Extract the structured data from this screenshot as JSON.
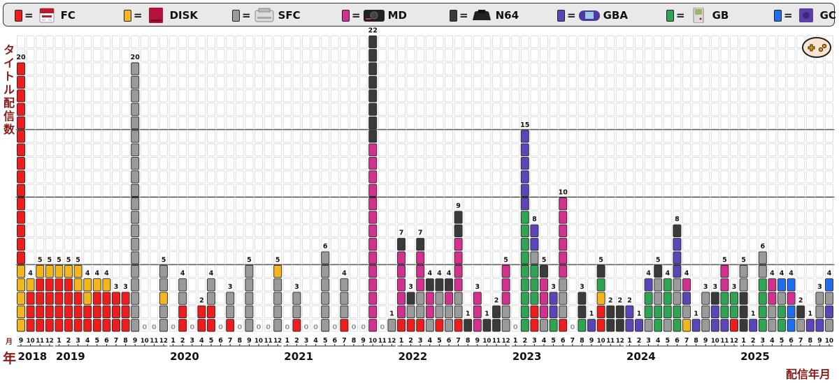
{
  "legend": [
    {
      "key": "FC",
      "label": "FC",
      "color": "#ee1c1c",
      "icon": "famicom-icon"
    },
    {
      "key": "DISK",
      "label": "DISK",
      "color": "#f5b51d",
      "icon": "disk-system-icon"
    },
    {
      "key": "SFC",
      "label": "SFC",
      "color": "#9a9a9a",
      "icon": "super-famicom-icon"
    },
    {
      "key": "MD",
      "label": "MD",
      "color": "#d3308f",
      "icon": "mega-drive-icon"
    },
    {
      "key": "N64",
      "label": "N64",
      "color": "#3a3a3a",
      "icon": "nintendo64-icon"
    },
    {
      "key": "GBA",
      "label": "GBA",
      "color": "#5c45b8",
      "icon": "gameboy-advance-icon"
    },
    {
      "key": "GB",
      "label": "GB",
      "color": "#2fa452",
      "icon": "gameboy-icon"
    },
    {
      "key": "GC",
      "label": "GC",
      "color": "#1f6df0",
      "icon": "gamecube-icon"
    }
  ],
  "equals": "=",
  "axis": {
    "ylabel": "タイトル配信数",
    "xlabel": "配信年月",
    "year_marker": "年",
    "month_marker": "月"
  },
  "icons": {
    "controller": "controller-icon"
  },
  "chart_data": {
    "type": "bar",
    "stacked": true,
    "ylim": [
      0,
      22
    ],
    "gridlines": [
      5,
      10,
      15
    ],
    "years": [
      {
        "label": "2018",
        "start": 0,
        "count": 4
      },
      {
        "label": "2019",
        "start": 4,
        "count": 12
      },
      {
        "label": "2020",
        "start": 16,
        "count": 12
      },
      {
        "label": "2021",
        "start": 28,
        "count": 12
      },
      {
        "label": "2022",
        "start": 40,
        "count": 12
      },
      {
        "label": "2023",
        "start": 52,
        "count": 12
      },
      {
        "label": "2024",
        "start": 64,
        "count": 12
      },
      {
        "label": "2025",
        "start": 76,
        "count": 10
      }
    ],
    "months": [
      {
        "m": "9",
        "total": "20",
        "stack": [
          [
            "DISK",
            5
          ],
          [
            "FC",
            15
          ]
        ]
      },
      {
        "m": "10",
        "total": "4",
        "stack": [
          [
            "FC",
            3
          ],
          [
            "DISK",
            1
          ]
        ]
      },
      {
        "m": "11",
        "total": "5",
        "stack": [
          [
            "FC",
            4
          ],
          [
            "DISK",
            1
          ]
        ]
      },
      {
        "m": "12",
        "total": "5",
        "stack": [
          [
            "FC",
            4
          ],
          [
            "DISK",
            1
          ]
        ]
      },
      {
        "m": "1",
        "total": "5",
        "stack": [
          [
            "FC",
            4
          ],
          [
            "DISK",
            1
          ]
        ]
      },
      {
        "m": "2",
        "total": "5",
        "stack": [
          [
            "FC",
            4
          ],
          [
            "DISK",
            1
          ]
        ]
      },
      {
        "m": "3",
        "total": "5",
        "stack": [
          [
            "FC",
            3
          ],
          [
            "DISK",
            2
          ]
        ]
      },
      {
        "m": "4",
        "total": "4",
        "stack": [
          [
            "FC",
            2
          ],
          [
            "DISK",
            2
          ]
        ]
      },
      {
        "m": "5",
        "total": "4",
        "stack": [
          [
            "FC",
            3
          ],
          [
            "DISK",
            1
          ]
        ]
      },
      {
        "m": "6",
        "total": "4",
        "stack": [
          [
            "FC",
            3
          ],
          [
            "DISK",
            1
          ]
        ]
      },
      {
        "m": "7",
        "total": "3",
        "stack": [
          [
            "FC",
            3
          ]
        ]
      },
      {
        "m": "8",
        "total": "3",
        "stack": [
          [
            "FC",
            3
          ]
        ]
      },
      {
        "m": "9",
        "total": "20",
        "stack": [
          [
            "SFC",
            20
          ]
        ]
      },
      {
        "m": "10",
        "total": "0",
        "stack": []
      },
      {
        "m": "11",
        "total": "0",
        "stack": []
      },
      {
        "m": "12",
        "total": "5",
        "stack": [
          [
            "SFC",
            2
          ],
          [
            "DISK",
            1
          ],
          [
            "SFC",
            2
          ]
        ]
      },
      {
        "m": "1",
        "total": "0",
        "stack": []
      },
      {
        "m": "2",
        "total": "4",
        "stack": [
          [
            "FC",
            2
          ],
          [
            "SFC",
            2
          ]
        ]
      },
      {
        "m": "3",
        "total": "0",
        "stack": []
      },
      {
        "m": "4",
        "total": "2",
        "stack": [
          [
            "FC",
            2
          ]
        ]
      },
      {
        "m": "5",
        "total": "4",
        "stack": [
          [
            "FC",
            2
          ],
          [
            "SFC",
            2
          ]
        ]
      },
      {
        "m": "6",
        "total": "0",
        "stack": []
      },
      {
        "m": "7",
        "total": "3",
        "stack": [
          [
            "FC",
            1
          ],
          [
            "SFC",
            2
          ]
        ]
      },
      {
        "m": "8",
        "total": "0",
        "stack": []
      },
      {
        "m": "9",
        "total": "5",
        "stack": [
          [
            "SFC",
            5
          ]
        ]
      },
      {
        "m": "10",
        "total": "0",
        "stack": []
      },
      {
        "m": "11",
        "total": "0",
        "stack": []
      },
      {
        "m": "12",
        "total": "5",
        "stack": [
          [
            "SFC",
            4
          ],
          [
            "DISK",
            1
          ]
        ]
      },
      {
        "m": "1",
        "total": "0",
        "stack": []
      },
      {
        "m": "2",
        "total": "3",
        "stack": [
          [
            "FC",
            1
          ],
          [
            "SFC",
            2
          ]
        ]
      },
      {
        "m": "3",
        "total": "0",
        "stack": []
      },
      {
        "m": "4",
        "total": "0",
        "stack": []
      },
      {
        "m": "5",
        "total": "6",
        "stack": [
          [
            "SFC",
            6
          ]
        ]
      },
      {
        "m": "6",
        "total": "0",
        "stack": []
      },
      {
        "m": "7",
        "total": "4",
        "stack": [
          [
            "FC",
            1
          ],
          [
            "SFC",
            3
          ]
        ]
      },
      {
        "m": "8",
        "total": "0",
        "stack": []
      },
      {
        "m": "9",
        "total": "0",
        "stack": []
      },
      {
        "m": "10",
        "total": "22",
        "stack": [
          [
            "MD",
            14
          ],
          [
            "N64",
            8
          ]
        ]
      },
      {
        "m": "11",
        "total": "0",
        "stack": []
      },
      {
        "m": "12",
        "total": "1",
        "stack": [
          [
            "SFC",
            1
          ]
        ]
      },
      {
        "m": "1",
        "total": "7",
        "stack": [
          [
            "FC",
            1
          ],
          [
            "MD",
            5
          ],
          [
            "N64",
            1
          ]
        ]
      },
      {
        "m": "2",
        "total": "3",
        "stack": [
          [
            "FC",
            1
          ],
          [
            "SFC",
            1
          ],
          [
            "N64",
            1
          ]
        ]
      },
      {
        "m": "3",
        "total": "7",
        "stack": [
          [
            "FC",
            1
          ],
          [
            "SFC",
            2
          ],
          [
            "MD",
            3
          ],
          [
            "N64",
            1
          ]
        ]
      },
      {
        "m": "4",
        "total": "4",
        "stack": [
          [
            "SFC",
            1
          ],
          [
            "MD",
            2
          ],
          [
            "N64",
            1
          ]
        ]
      },
      {
        "m": "5",
        "total": "4",
        "stack": [
          [
            "FC",
            1
          ],
          [
            "SFC",
            2
          ],
          [
            "N64",
            1
          ]
        ]
      },
      {
        "m": "6",
        "total": "4",
        "stack": [
          [
            "SFC",
            2
          ],
          [
            "MD",
            1
          ],
          [
            "N64",
            1
          ]
        ]
      },
      {
        "m": "7",
        "total": "9",
        "stack": [
          [
            "FC",
            1
          ],
          [
            "SFC",
            2
          ],
          [
            "MD",
            4
          ],
          [
            "N64",
            2
          ]
        ]
      },
      {
        "m": "8",
        "total": "1",
        "stack": [
          [
            "N64",
            1
          ]
        ]
      },
      {
        "m": "9",
        "total": "3",
        "stack": [
          [
            "MD",
            3
          ]
        ]
      },
      {
        "m": "10",
        "total": "1",
        "stack": [
          [
            "N64",
            1
          ]
        ]
      },
      {
        "m": "11",
        "total": "2",
        "stack": [
          [
            "N64",
            2
          ]
        ]
      },
      {
        "m": "12",
        "total": "5",
        "stack": [
          [
            "SFC",
            2
          ],
          [
            "MD",
            3
          ]
        ]
      },
      {
        "m": "1",
        "total": "0",
        "stack": []
      },
      {
        "m": "2",
        "total": "15",
        "stack": [
          [
            "GB",
            9
          ],
          [
            "GBA",
            6
          ]
        ]
      },
      {
        "m": "3",
        "total": "8",
        "stack": [
          [
            "FC",
            2
          ],
          [
            "GB",
            3
          ],
          [
            "SFC",
            1
          ],
          [
            "GBA",
            2
          ]
        ]
      },
      {
        "m": "4",
        "total": "5",
        "stack": [
          [
            "SFC",
            1
          ],
          [
            "MD",
            3
          ],
          [
            "N64",
            1
          ]
        ]
      },
      {
        "m": "5",
        "total": "3",
        "stack": [
          [
            "GB",
            1
          ],
          [
            "GBA",
            2
          ]
        ]
      },
      {
        "m": "6",
        "total": "10",
        "stack": [
          [
            "FC",
            1
          ],
          [
            "SFC",
            3
          ],
          [
            "MD",
            6
          ]
        ]
      },
      {
        "m": "7",
        "total": "0",
        "stack": []
      },
      {
        "m": "8",
        "total": "3",
        "stack": [
          [
            "GB",
            1
          ],
          [
            "N64",
            2
          ]
        ]
      },
      {
        "m": "9",
        "total": "1",
        "stack": [
          [
            "GBA",
            1
          ]
        ]
      },
      {
        "m": "10",
        "total": "5",
        "stack": [
          [
            "FC",
            2
          ],
          [
            "DISK",
            1
          ],
          [
            "GB",
            1
          ],
          [
            "N64",
            1
          ]
        ]
      },
      {
        "m": "11",
        "total": "2",
        "stack": [
          [
            "N64",
            2
          ]
        ]
      },
      {
        "m": "12",
        "total": "2",
        "stack": [
          [
            "N64",
            2
          ]
        ]
      },
      {
        "m": "1",
        "total": "2",
        "stack": [
          [
            "GBA",
            2
          ]
        ]
      },
      {
        "m": "2",
        "total": "1",
        "stack": [
          [
            "GBA",
            1
          ]
        ]
      },
      {
        "m": "3",
        "total": "4",
        "stack": [
          [
            "SFC",
            1
          ],
          [
            "GB",
            2
          ],
          [
            "GBA",
            1
          ]
        ]
      },
      {
        "m": "4",
        "total": "5",
        "stack": [
          [
            "GB",
            2
          ],
          [
            "SFC",
            2
          ],
          [
            "N64",
            1
          ]
        ]
      },
      {
        "m": "5",
        "total": "4",
        "stack": [
          [
            "SFC",
            1
          ],
          [
            "GB",
            3
          ]
        ]
      },
      {
        "m": "6",
        "total": "8",
        "stack": [
          [
            "GB",
            2
          ],
          [
            "SFC",
            2
          ],
          [
            "GBA",
            3
          ],
          [
            "N64",
            1
          ]
        ]
      },
      {
        "m": "7",
        "total": "4",
        "stack": [
          [
            "DISK",
            1
          ],
          [
            "SFC",
            1
          ],
          [
            "GBA",
            1
          ],
          [
            "MD",
            1
          ]
        ]
      },
      {
        "m": "8",
        "total": "1",
        "stack": [
          [
            "GBA",
            1
          ]
        ]
      },
      {
        "m": "9",
        "total": "3",
        "stack": [
          [
            "SFC",
            3
          ]
        ]
      },
      {
        "m": "10",
        "total": "3",
        "stack": [
          [
            "GBA",
            2
          ],
          [
            "N64",
            1
          ]
        ]
      },
      {
        "m": "11",
        "total": "5",
        "stack": [
          [
            "GBA",
            1
          ],
          [
            "GB",
            2
          ],
          [
            "MD",
            2
          ]
        ]
      },
      {
        "m": "12",
        "total": "3",
        "stack": [
          [
            "FC",
            1
          ],
          [
            "GB",
            2
          ]
        ]
      },
      {
        "m": "1",
        "total": "5",
        "stack": [
          [
            "N64",
            3
          ],
          [
            "SFC",
            2
          ]
        ]
      },
      {
        "m": "2",
        "total": "1",
        "stack": [
          [
            "GBA",
            1
          ]
        ]
      },
      {
        "m": "3",
        "total": "6",
        "stack": [
          [
            "GB",
            4
          ],
          [
            "SFC",
            2
          ]
        ]
      },
      {
        "m": "4",
        "total": "4",
        "stack": [
          [
            "SFC",
            2
          ],
          [
            "MD",
            2
          ]
        ]
      },
      {
        "m": "5",
        "total": "4",
        "stack": [
          [
            "GB",
            2
          ],
          [
            "SFC",
            1
          ],
          [
            "GC",
            1
          ]
        ]
      },
      {
        "m": "6",
        "total": "4",
        "stack": [
          [
            "GC",
            2
          ],
          [
            "MD",
            1
          ],
          [
            "GC",
            1
          ]
        ]
      },
      {
        "m": "7",
        "total": "2",
        "stack": [
          [
            "SFC",
            1
          ],
          [
            "N64",
            1
          ]
        ]
      },
      {
        "m": "8",
        "total": "1",
        "stack": [
          [
            "GBA",
            1
          ]
        ]
      },
      {
        "m": "9",
        "total": "3",
        "stack": [
          [
            "GBA",
            1
          ],
          [
            "SFC",
            2
          ]
        ]
      },
      {
        "m": "10",
        "total": "4",
        "stack": [
          [
            "SFC",
            1
          ],
          [
            "GBA",
            1
          ],
          [
            "SFC",
            1
          ],
          [
            "GC",
            1
          ]
        ]
      }
    ]
  }
}
